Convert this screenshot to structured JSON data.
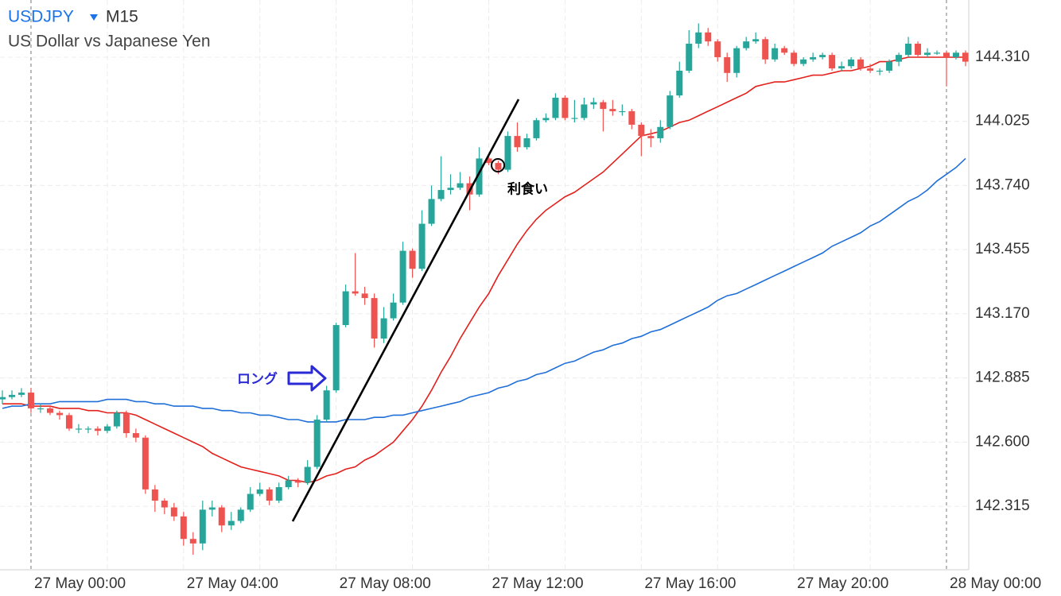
{
  "header": {
    "symbol": "USDJPY",
    "timeframe": "M15",
    "description": "US Dollar vs Japanese Yen"
  },
  "chart_data": {
    "type": "candlestick",
    "categories": [
      null,
      null,
      null,
      "27 May 00:00",
      null,
      null,
      null,
      null,
      null,
      null,
      null,
      null,
      null,
      null,
      null,
      null,
      null,
      null,
      null,
      "27 May 04:00",
      null,
      null,
      null,
      null,
      null,
      null,
      null,
      null,
      null,
      null,
      null,
      null,
      null,
      null,
      null,
      "27 May 08:00",
      null,
      null,
      null,
      null,
      null,
      null,
      null,
      null,
      null,
      null,
      null,
      null,
      null,
      null,
      null,
      "27 May 12:00",
      null,
      null,
      null,
      null,
      null,
      null,
      null,
      null,
      null,
      null,
      null,
      null,
      null,
      null,
      null,
      "27 May 16:00",
      null,
      null,
      null,
      null,
      null,
      null,
      null,
      null,
      null,
      null,
      null,
      null,
      null,
      null,
      null,
      "27 May 20:00",
      null,
      null,
      null,
      null,
      null,
      null,
      null,
      null,
      null,
      null,
      null,
      null,
      null,
      null,
      null,
      "28 May 00:00",
      null,
      null
    ],
    "open": [
      142.79,
      142.8,
      142.81,
      142.82,
      142.75,
      142.75,
      142.73,
      142.72,
      142.66,
      142.66,
      142.66,
      142.65,
      142.67,
      142.73,
      142.64,
      142.62,
      142.39,
      142.34,
      142.31,
      142.27,
      142.17,
      142.15,
      142.3,
      142.31,
      142.23,
      142.25,
      142.3,
      142.37,
      142.39,
      142.34,
      142.4,
      142.43,
      142.42,
      142.49,
      142.7,
      142.83,
      143.12,
      143.27,
      143.26,
      143.24,
      143.06,
      143.15,
      143.22,
      143.45,
      143.37,
      143.57,
      143.68,
      143.72,
      143.73,
      143.75,
      143.7,
      143.86,
      143.84,
      143.81,
      143.96,
      143.91,
      143.95,
      144.03,
      144.04,
      144.13,
      144.04,
      144.04,
      144.1,
      144.11,
      144.08,
      144.07,
      144.07,
      144.01,
      143.96,
      143.95,
      144.0,
      144.14,
      144.25,
      144.37,
      144.42,
      144.38,
      144.31,
      144.24,
      144.35,
      144.38,
      144.39,
      144.3,
      144.35,
      144.33,
      144.28,
      144.3,
      144.31,
      144.32,
      144.26,
      144.27,
      144.3,
      144.26,
      144.25,
      144.25,
      144.29,
      144.32,
      144.37,
      144.32,
      144.33,
      144.33,
      144.31,
      144.33
    ],
    "high": [
      142.83,
      142.83,
      142.84,
      142.84,
      142.77,
      142.76,
      142.74,
      142.73,
      142.68,
      142.67,
      142.67,
      142.68,
      142.74,
      142.74,
      142.66,
      142.63,
      142.41,
      142.35,
      142.33,
      142.29,
      142.2,
      142.34,
      142.34,
      142.32,
      142.29,
      142.31,
      142.4,
      142.42,
      142.4,
      142.42,
      142.45,
      142.44,
      142.52,
      142.72,
      142.85,
      143.13,
      143.3,
      143.44,
      143.29,
      143.26,
      143.2,
      143.26,
      143.49,
      143.46,
      143.63,
      143.74,
      143.87,
      143.79,
      143.8,
      143.78,
      143.91,
      143.87,
      143.85,
      143.98,
      144.02,
      143.97,
      144.04,
      144.06,
      144.15,
      144.14,
      144.12,
      144.13,
      144.13,
      144.12,
      144.12,
      144.1,
      144.08,
      144.02,
      143.99,
      144.03,
      144.16,
      144.29,
      144.43,
      144.46,
      144.44,
      144.39,
      144.33,
      144.36,
      144.4,
      144.42,
      144.4,
      144.37,
      144.36,
      144.34,
      144.31,
      144.33,
      144.33,
      144.33,
      144.29,
      144.31,
      144.31,
      144.28,
      144.26,
      144.3,
      144.33,
      144.4,
      144.38,
      144.35,
      144.34,
      144.34,
      144.34,
      144.34
    ],
    "low": [
      142.77,
      142.79,
      142.8,
      142.73,
      142.73,
      142.72,
      142.7,
      142.65,
      142.64,
      142.64,
      142.63,
      142.64,
      142.66,
      142.62,
      142.6,
      142.37,
      142.29,
      142.28,
      142.25,
      142.14,
      142.1,
      142.12,
      142.27,
      142.2,
      142.21,
      142.24,
      142.29,
      142.36,
      142.32,
      142.33,
      142.39,
      142.4,
      142.41,
      142.48,
      142.69,
      142.82,
      143.11,
      143.25,
      143.21,
      143.02,
      143.04,
      143.14,
      143.21,
      143.33,
      143.36,
      143.56,
      143.67,
      143.7,
      143.72,
      143.63,
      143.69,
      143.83,
      143.79,
      143.8,
      143.89,
      143.9,
      143.94,
      144.02,
      144.03,
      144.03,
      144.02,
      144.03,
      144.08,
      143.98,
      144.05,
      144.05,
      143.99,
      143.87,
      143.91,
      143.93,
      143.99,
      144.13,
      144.24,
      144.35,
      144.36,
      144.29,
      144.2,
      144.22,
      144.34,
      144.37,
      144.28,
      144.29,
      144.32,
      144.27,
      144.27,
      144.29,
      144.3,
      144.25,
      144.25,
      144.26,
      144.25,
      144.24,
      144.23,
      144.24,
      144.27,
      144.31,
      144.31,
      144.31,
      144.32,
      144.18,
      144.3,
      144.27
    ],
    "close": [
      142.8,
      142.81,
      142.82,
      142.75,
      142.75,
      142.73,
      142.72,
      142.66,
      142.66,
      142.66,
      142.65,
      142.67,
      142.73,
      142.64,
      142.62,
      142.39,
      142.34,
      142.31,
      142.27,
      142.17,
      142.15,
      142.3,
      142.31,
      142.23,
      142.25,
      142.3,
      142.37,
      142.39,
      142.34,
      142.4,
      142.43,
      142.42,
      142.49,
      142.7,
      142.83,
      143.12,
      143.27,
      143.26,
      143.24,
      143.06,
      143.15,
      143.22,
      143.45,
      143.37,
      143.57,
      143.68,
      143.72,
      143.73,
      143.75,
      143.7,
      143.86,
      143.84,
      143.81,
      143.96,
      143.91,
      143.95,
      144.03,
      144.04,
      144.13,
      144.04,
      144.04,
      144.1,
      144.11,
      144.08,
      144.07,
      144.07,
      144.01,
      143.96,
      143.95,
      144.0,
      144.14,
      144.25,
      144.37,
      144.42,
      144.38,
      144.31,
      144.24,
      144.35,
      144.38,
      144.39,
      144.3,
      144.35,
      144.33,
      144.28,
      144.3,
      144.31,
      144.32,
      144.26,
      144.27,
      144.3,
      144.26,
      144.25,
      144.25,
      144.29,
      144.32,
      144.37,
      144.32,
      144.33,
      144.33,
      144.31,
      144.33,
      144.29
    ],
    "up_color": "#26a69a",
    "down_color": "#ef5350",
    "series": [
      {
        "color": "#e3201b",
        "values": [
          142.77,
          142.77,
          142.77,
          142.76,
          142.76,
          142.76,
          142.75,
          142.75,
          142.75,
          142.74,
          142.74,
          142.73,
          142.73,
          142.73,
          142.72,
          142.7,
          142.68,
          142.66,
          142.64,
          142.62,
          142.6,
          142.58,
          142.55,
          142.53,
          142.51,
          142.49,
          142.48,
          142.47,
          142.46,
          142.45,
          142.43,
          142.43,
          142.42,
          142.43,
          142.45,
          142.46,
          142.48,
          142.49,
          142.52,
          142.54,
          142.57,
          142.6,
          142.65,
          142.7,
          142.76,
          142.83,
          142.91,
          142.98,
          143.06,
          143.13,
          143.2,
          143.26,
          143.34,
          143.41,
          143.48,
          143.54,
          143.59,
          143.63,
          143.66,
          143.69,
          143.71,
          143.74,
          143.77,
          143.8,
          143.84,
          143.88,
          143.92,
          143.96,
          143.97,
          143.98,
          144.0,
          144.02,
          144.03,
          144.05,
          144.07,
          144.09,
          144.11,
          144.13,
          144.15,
          144.18,
          144.19,
          144.2,
          144.2,
          144.21,
          144.22,
          144.23,
          144.23,
          144.24,
          144.25,
          144.25,
          144.26,
          144.27,
          144.29,
          144.29,
          144.3,
          144.31,
          144.31,
          144.31,
          144.31,
          144.31,
          144.31,
          144.31
        ]
      },
      {
        "color": "#1f6fd8",
        "values": [
          142.75,
          142.76,
          142.76,
          142.77,
          142.77,
          142.77,
          142.78,
          142.78,
          142.78,
          142.78,
          142.78,
          142.79,
          142.79,
          142.79,
          142.78,
          142.78,
          142.77,
          142.77,
          142.76,
          142.76,
          142.76,
          142.75,
          142.75,
          142.74,
          142.74,
          142.73,
          142.73,
          142.72,
          142.72,
          142.71,
          142.7,
          142.7,
          142.69,
          142.69,
          142.69,
          142.69,
          142.7,
          142.7,
          142.7,
          142.71,
          142.71,
          142.72,
          142.72,
          142.73,
          142.74,
          142.75,
          142.76,
          142.77,
          142.78,
          142.8,
          142.81,
          142.82,
          142.84,
          142.85,
          142.87,
          142.88,
          142.9,
          142.91,
          142.93,
          142.95,
          142.96,
          142.98,
          143.0,
          143.01,
          143.03,
          143.04,
          143.06,
          143.07,
          143.09,
          143.1,
          143.12,
          143.14,
          143.16,
          143.18,
          143.2,
          143.23,
          143.25,
          143.26,
          143.28,
          143.3,
          143.32,
          143.34,
          143.36,
          143.38,
          143.4,
          143.42,
          143.44,
          143.47,
          143.49,
          143.51,
          143.53,
          143.56,
          143.58,
          143.61,
          143.64,
          143.67,
          143.69,
          143.72,
          143.76,
          143.79,
          143.82,
          143.86
        ]
      }
    ],
    "ylim": [
      142.033,
      144.564
    ],
    "yticks": [
      142.315,
      {
        "value": 142.6,
        "label": "142.600"
      },
      142.885,
      {
        "value": 143.17,
        "label": "143.170"
      },
      143.455,
      {
        "value": 143.74,
        "label": "143.740"
      },
      144.025,
      {
        "value": 144.31,
        "label": "144.310"
      }
    ],
    "grid": true,
    "annotations": [
      "ロング",
      "利食い"
    ]
  }
}
